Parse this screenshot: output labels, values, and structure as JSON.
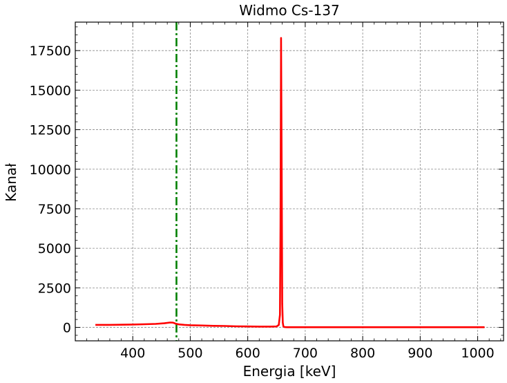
{
  "chart_data": {
    "type": "line",
    "title": "Widmo Cs-137",
    "xlabel": "Energia [keV]",
    "ylabel": "Kanał",
    "xlim": [
      300,
      1045
    ],
    "ylim": [
      -850,
      19300
    ],
    "x_ticks": [
      400,
      500,
      600,
      700,
      800,
      900,
      1000
    ],
    "y_ticks": [
      0,
      2500,
      5000,
      7500,
      10000,
      12500,
      15000,
      17500
    ],
    "grid": true,
    "series": [
      {
        "color": "#ff0000",
        "style": "solid",
        "x": [
          335,
          360,
          380,
          400,
          420,
          440,
          455,
          465,
          470,
          475,
          480,
          490,
          500,
          520,
          540,
          560,
          580,
          600,
          620,
          640,
          650,
          654,
          656,
          657,
          658,
          659,
          660,
          661,
          662,
          664,
          668,
          680,
          700,
          750,
          800,
          850,
          900,
          950,
          1000,
          1012
        ],
        "y": [
          160,
          160,
          170,
          180,
          200,
          220,
          260,
          310,
          300,
          230,
          190,
          160,
          140,
          120,
          100,
          90,
          70,
          60,
          50,
          50,
          60,
          150,
          800,
          6500,
          18300,
          10000,
          1500,
          300,
          60,
          20,
          10,
          10,
          10,
          10,
          10,
          10,
          10,
          10,
          10,
          10
        ]
      }
    ],
    "vlines": [
      {
        "x": 476,
        "color": "#008000",
        "style": "dashdot"
      }
    ]
  }
}
